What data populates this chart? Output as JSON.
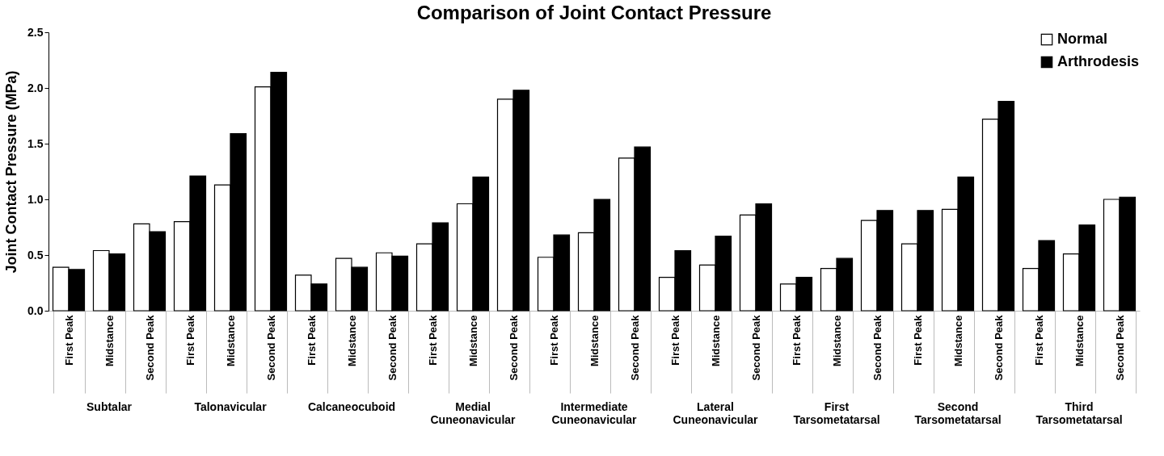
{
  "chart_data": {
    "type": "bar",
    "title": "Comparison of Joint Contact Pressure",
    "ylabel": "Joint Contact Pressure (MPa)",
    "categories": [
      "First Peak",
      "Midstance",
      "Second Peak",
      "First Peak",
      "Midstance",
      "Second Peak",
      "First Peak",
      "Midstance",
      "Second Peak",
      "First Peak",
      "Midstance",
      "Second Peak",
      "First Peak",
      "Midstance",
      "Second Peak",
      "First Peak",
      "Midstance",
      "Second Peak",
      "First Peak",
      "Midstance",
      "Second Peak",
      "First Peak",
      "Midstance",
      "Second Peak",
      "First Peak",
      "Midstance",
      "Second Peak"
    ],
    "series": [
      {
        "name": "Normal",
        "color": "#ffffff",
        "values": [
          0.39,
          0.54,
          0.78,
          0.8,
          1.13,
          2.01,
          0.32,
          0.47,
          0.52,
          0.6,
          0.96,
          1.9,
          0.48,
          0.7,
          1.37,
          0.3,
          0.41,
          0.86,
          0.24,
          0.38,
          0.81,
          0.6,
          0.91,
          1.72,
          0.38,
          0.51,
          1.0
        ]
      },
      {
        "name": "Arthrodesis",
        "color": "#000000",
        "values": [
          0.37,
          0.51,
          0.71,
          1.21,
          1.59,
          2.14,
          0.24,
          0.39,
          0.49,
          0.79,
          1.2,
          1.98,
          0.68,
          1.0,
          1.47,
          0.54,
          0.67,
          0.96,
          0.3,
          0.47,
          0.9,
          0.9,
          1.2,
          1.88,
          0.63,
          0.77,
          1.02
        ]
      }
    ],
    "annotations": [
      "Subtalar",
      "Talonavicular",
      "Calcaneocuboid",
      "Medial Cuneonavicular",
      "Intermediate Cuneonavicular",
      "Lateral Cuneonavicular",
      "First Tarsometatarsal",
      "Second Tarsometatarsal",
      "Third Tarsometatarsal"
    ],
    "ylim": [
      0,
      2.5
    ],
    "yticks": [
      {
        "value": 0,
        "label": "0.0"
      },
      {
        "value": 0.5,
        "label": "0.5"
      },
      {
        "value": 1,
        "label": "1.0"
      },
      {
        "value": 1.5,
        "label": "1.5"
      },
      {
        "value": 2,
        "label": "2.0"
      },
      {
        "value": 2.5,
        "label": "2.5"
      }
    ],
    "grid": false,
    "legend": "top right"
  }
}
